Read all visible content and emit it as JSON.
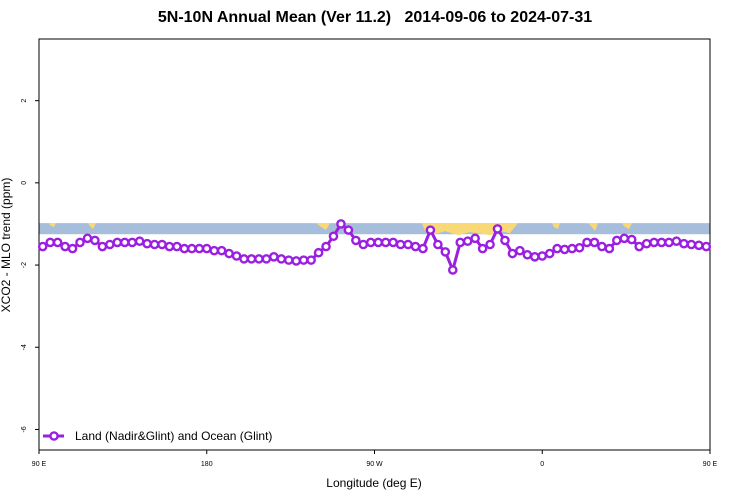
{
  "chart_data": {
    "type": "line",
    "title": "5N-10N Annual Mean (Ver 11.2)   2014-09-06 to 2024-07-31",
    "xlabel": "Longitude (deg E)",
    "ylabel": "XCO2 - MLO trend (ppm)",
    "xlim": [
      90,
      450
    ],
    "ylim": [
      -6.5,
      3.5
    ],
    "x_ticks": [
      {
        "value": 90,
        "label": "90 E"
      },
      {
        "value": 180,
        "label": "180"
      },
      {
        "value": 270,
        "label": "90 W"
      },
      {
        "value": 360,
        "label": "0"
      },
      {
        "value": 450,
        "label": "90 E"
      },
      {
        "value": 540,
        "label": "180"
      }
    ],
    "y_ticks": [
      {
        "value": 2,
        "label": "2"
      },
      {
        "value": 0,
        "label": "0"
      },
      {
        "value": -2,
        "label": "-2"
      },
      {
        "value": -4,
        "label": "-4"
      },
      {
        "value": -6,
        "label": "-6"
      }
    ],
    "grid": false,
    "legend_position": "bottom-left",
    "background_band": {
      "y_range": [
        -1.25,
        -0.98
      ],
      "ocean_color": "#a6bddb",
      "land_color": "#f9d977"
    },
    "series": [
      {
        "name": "Land (Nadir&Glint) and Ocean (Glint)",
        "color": "#9b1fe0",
        "points": [
          [
            92,
            -1.55
          ],
          [
            96,
            -1.45
          ],
          [
            100,
            -1.45
          ],
          [
            104,
            -1.55
          ],
          [
            108,
            -1.6
          ],
          [
            112,
            -1.45
          ],
          [
            116,
            -1.35
          ],
          [
            120,
            -1.4
          ],
          [
            124,
            -1.55
          ],
          [
            128,
            -1.5
          ],
          [
            132,
            -1.45
          ],
          [
            136,
            -1.45
          ],
          [
            140,
            -1.45
          ],
          [
            144,
            -1.42
          ],
          [
            148,
            -1.48
          ],
          [
            152,
            -1.5
          ],
          [
            156,
            -1.5
          ],
          [
            160,
            -1.55
          ],
          [
            164,
            -1.55
          ],
          [
            168,
            -1.6
          ],
          [
            172,
            -1.6
          ],
          [
            176,
            -1.6
          ],
          [
            180,
            -1.6
          ],
          [
            184,
            -1.65
          ],
          [
            188,
            -1.65
          ],
          [
            192,
            -1.72
          ],
          [
            196,
            -1.78
          ],
          [
            200,
            -1.85
          ],
          [
            204,
            -1.85
          ],
          [
            208,
            -1.85
          ],
          [
            212,
            -1.85
          ],
          [
            216,
            -1.8
          ],
          [
            220,
            -1.85
          ],
          [
            224,
            -1.88
          ],
          [
            228,
            -1.9
          ],
          [
            232,
            -1.88
          ],
          [
            236,
            -1.88
          ],
          [
            240,
            -1.7
          ],
          [
            244,
            -1.55
          ],
          [
            248,
            -1.3
          ],
          [
            252,
            -1.0
          ],
          [
            256,
            -1.15
          ],
          [
            260,
            -1.4
          ],
          [
            264,
            -1.5
          ],
          [
            268,
            -1.45
          ],
          [
            272,
            -1.45
          ],
          [
            276,
            -1.45
          ],
          [
            280,
            -1.45
          ],
          [
            284,
            -1.5
          ],
          [
            288,
            -1.5
          ],
          [
            292,
            -1.55
          ],
          [
            296,
            -1.6
          ],
          [
            300,
            -1.15
          ],
          [
            304,
            -1.5
          ],
          [
            308,
            -1.68
          ],
          [
            312,
            -2.12
          ],
          [
            316,
            -1.45
          ],
          [
            320,
            -1.42
          ],
          [
            324,
            -1.35
          ],
          [
            328,
            -1.6
          ],
          [
            332,
            -1.5
          ],
          [
            336,
            -1.12
          ],
          [
            340,
            -1.4
          ],
          [
            344,
            -1.72
          ],
          [
            348,
            -1.65
          ],
          [
            352,
            -1.75
          ],
          [
            356,
            -1.8
          ],
          [
            360,
            -1.78
          ],
          [
            364,
            -1.72
          ],
          [
            368,
            -1.6
          ],
          [
            372,
            -1.62
          ],
          [
            376,
            -1.6
          ],
          [
            380,
            -1.58
          ],
          [
            384,
            -1.45
          ],
          [
            388,
            -1.45
          ],
          [
            392,
            -1.55
          ],
          [
            396,
            -1.6
          ],
          [
            400,
            -1.4
          ],
          [
            404,
            -1.35
          ],
          [
            408,
            -1.38
          ],
          [
            412,
            -1.55
          ],
          [
            416,
            -1.48
          ],
          [
            420,
            -1.45
          ],
          [
            424,
            -1.45
          ],
          [
            428,
            -1.45
          ],
          [
            432,
            -1.42
          ],
          [
            436,
            -1.48
          ],
          [
            440,
            -1.5
          ],
          [
            444,
            -1.52
          ],
          [
            448,
            -1.55
          ]
        ]
      }
    ]
  }
}
